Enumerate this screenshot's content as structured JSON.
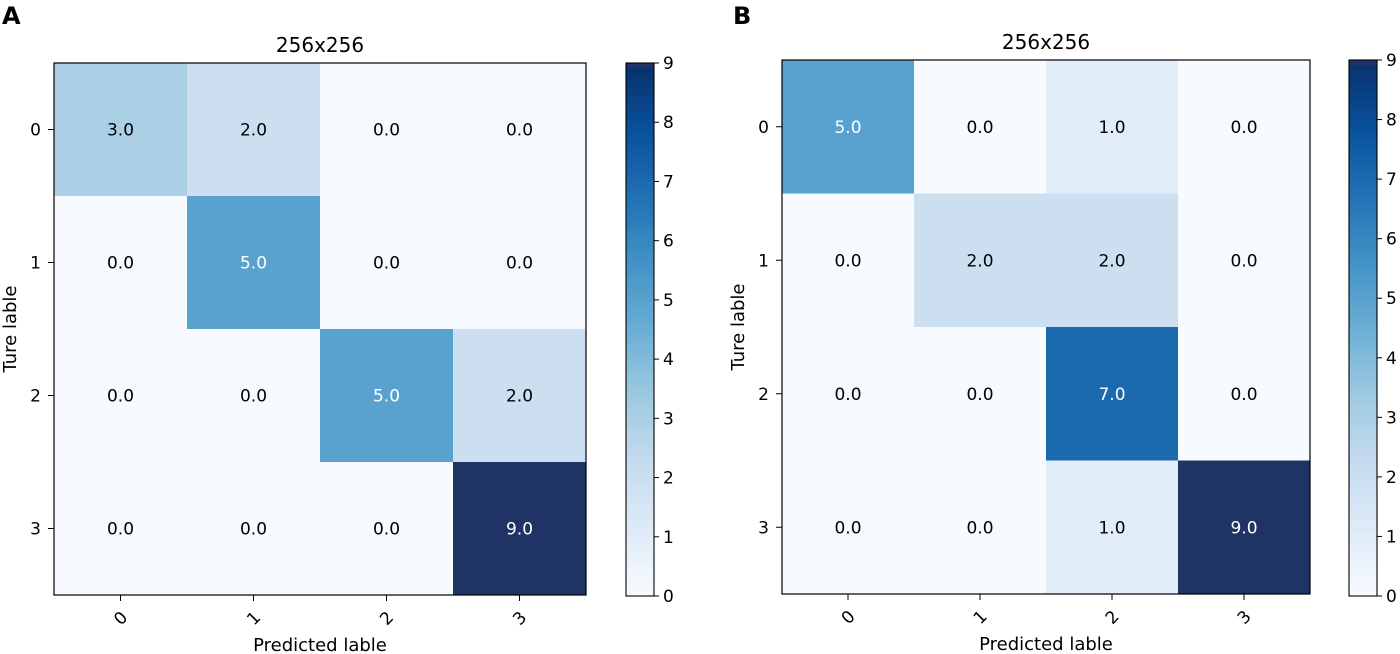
{
  "panels": [
    {
      "letter": "A"
    },
    {
      "letter": "B"
    }
  ],
  "colors": {
    "cmap_low": "#f7fbff",
    "cmap_stops": [
      "#f7fbff",
      "#deebf7",
      "#c6dbef",
      "#9ecae1",
      "#6baed6",
      "#4292c6",
      "#2171b5",
      "#08519c",
      "#08306b"
    ],
    "cmap_top": "#1f3464",
    "text_dark": "#000000",
    "text_light": "#ffffff"
  },
  "chart_data": [
    {
      "type": "heatmap",
      "title": "256x256",
      "xlabel": "Predicted lable",
      "ylabel": "Ture lable",
      "x_tick_labels": [
        "0",
        "1",
        "2",
        "3"
      ],
      "y_tick_labels": [
        "0",
        "1",
        "2",
        "3"
      ],
      "matrix": [
        [
          3,
          2,
          0,
          0
        ],
        [
          0,
          5,
          0,
          0
        ],
        [
          0,
          0,
          5,
          2
        ],
        [
          0,
          0,
          0,
          9
        ]
      ],
      "cell_labels": [
        [
          "3.0",
          "2.0",
          "0.0",
          "0.0"
        ],
        [
          "0.0",
          "5.0",
          "0.0",
          "0.0"
        ],
        [
          "0.0",
          "0.0",
          "5.0",
          "2.0"
        ],
        [
          "0.0",
          "0.0",
          "0.0",
          "9.0"
        ]
      ],
      "colorbar": {
        "min": 0,
        "max": 9,
        "ticks": [
          "0",
          "1",
          "2",
          "3",
          "4",
          "5",
          "6",
          "7",
          "8",
          "9"
        ]
      }
    },
    {
      "type": "heatmap",
      "title": "256x256",
      "xlabel": "Predicted lable",
      "ylabel": "Ture lable",
      "x_tick_labels": [
        "0",
        "1",
        "2",
        "3"
      ],
      "y_tick_labels": [
        "0",
        "1",
        "2",
        "3"
      ],
      "matrix": [
        [
          5,
          0,
          1,
          0
        ],
        [
          0,
          2,
          2,
          0
        ],
        [
          0,
          0,
          7,
          0
        ],
        [
          0,
          0,
          1,
          9
        ]
      ],
      "cell_labels": [
        [
          "5.0",
          "0.0",
          "1.0",
          "0.0"
        ],
        [
          "0.0",
          "2.0",
          "2.0",
          "0.0"
        ],
        [
          "0.0",
          "0.0",
          "7.0",
          "0.0"
        ],
        [
          "0.0",
          "0.0",
          "1.0",
          "9.0"
        ]
      ],
      "colorbar": {
        "min": 0,
        "max": 9,
        "ticks": [
          "0",
          "1",
          "2",
          "3",
          "4",
          "5",
          "6",
          "7",
          "8",
          "9"
        ]
      }
    }
  ]
}
